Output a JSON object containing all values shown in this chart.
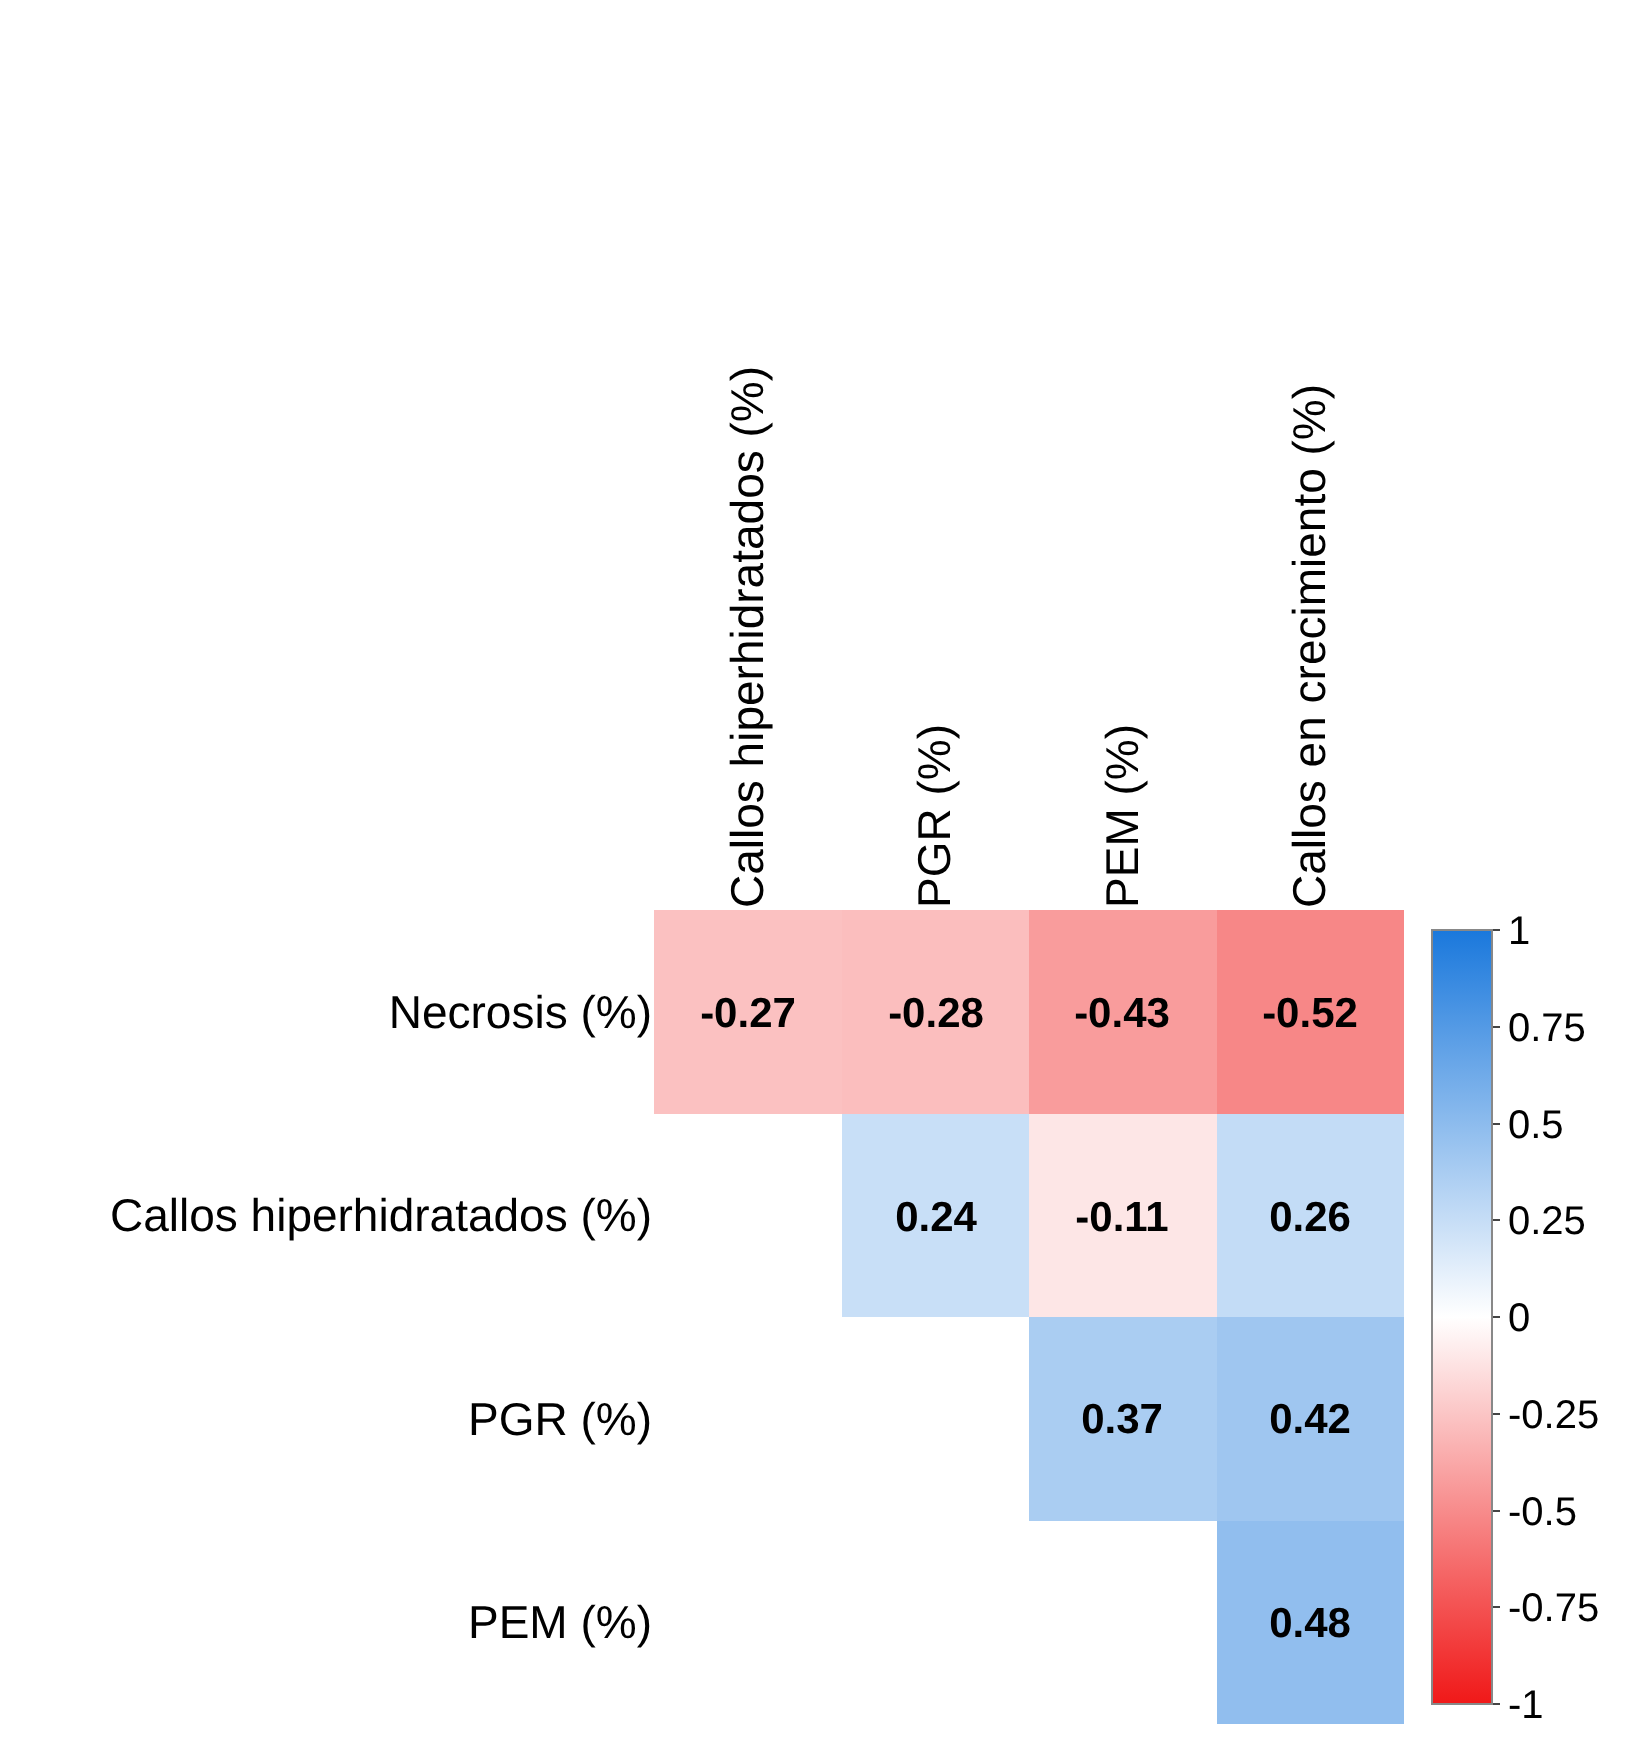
{
  "chart_data": {
    "type": "heatmap",
    "categories": [
      "Callos hiperhidratados (%)",
      "PGR (%)",
      "PEM (%)",
      "Callos en crecimiento (%)"
    ],
    "y_categories": [
      "Necrosis (%)",
      "Callos hiperhidratados (%)",
      "PGR (%)",
      "PEM (%)"
    ],
    "cells": [
      [
        -0.27,
        -0.28,
        -0.43,
        -0.52
      ],
      [
        null,
        0.24,
        -0.11,
        0.26
      ],
      [
        null,
        null,
        0.37,
        0.42
      ],
      [
        null,
        null,
        null,
        0.48
      ]
    ],
    "data_labels": true,
    "clim": [
      -1,
      1
    ],
    "cticks": [
      -1,
      -0.75,
      -0.5,
      -0.25,
      0,
      0.25,
      0.5,
      0.75,
      1
    ],
    "grid": false
  }
}
